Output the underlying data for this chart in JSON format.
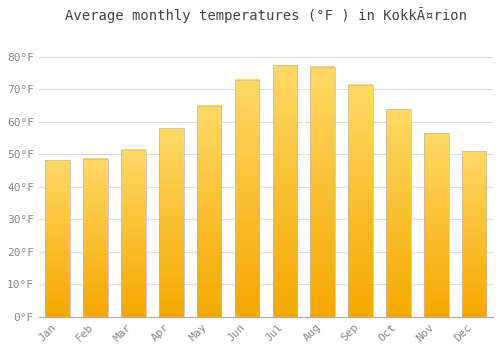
{
  "title": "Average monthly temperatures (°F ) in KokkÃ¤rion",
  "months": [
    "Jan",
    "Feb",
    "Mar",
    "Apr",
    "May",
    "Jun",
    "Jul",
    "Aug",
    "Sep",
    "Oct",
    "Nov",
    "Dec"
  ],
  "values": [
    48.2,
    48.7,
    51.5,
    58.0,
    65.0,
    73.0,
    77.5,
    77.0,
    71.5,
    64.0,
    56.5,
    51.0
  ],
  "bar_color_top": "#F5A800",
  "bar_color_bottom": "#FFD966",
  "bar_edge_color": "#BBBBBB",
  "background_color": "#FFFFFF",
  "grid_color": "#DDDDDD",
  "tick_label_color": "#888888",
  "title_color": "#444444",
  "ylim": [
    0,
    88
  ],
  "yticks": [
    0,
    10,
    20,
    30,
    40,
    50,
    60,
    70,
    80
  ],
  "ytick_labels": [
    "0°F",
    "10°F",
    "20°F",
    "30°F",
    "40°F",
    "50°F",
    "60°F",
    "70°F",
    "80°F"
  ],
  "figsize": [
    5.0,
    3.5
  ],
  "dpi": 100,
  "title_fontsize": 10,
  "tick_fontsize": 8,
  "bar_width": 0.65
}
